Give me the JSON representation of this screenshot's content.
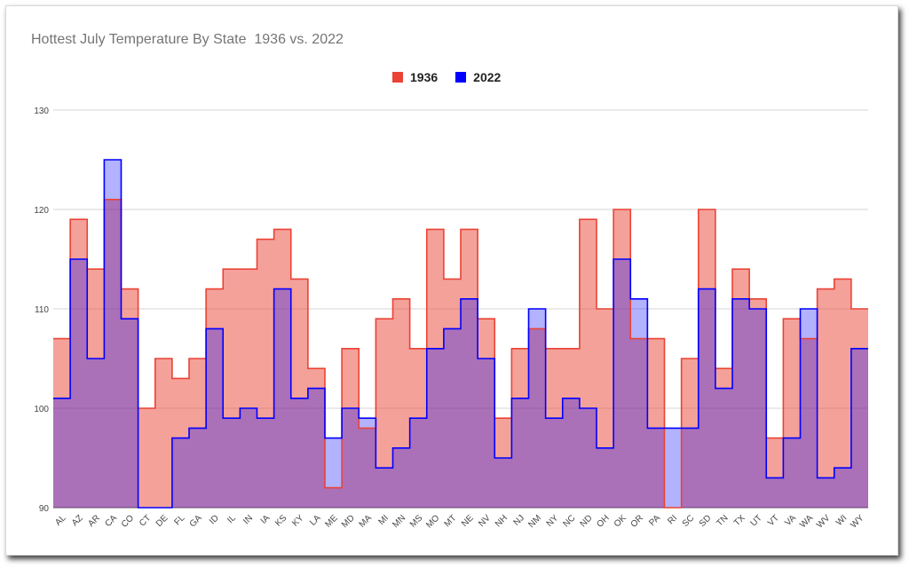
{
  "chart_data": {
    "type": "area",
    "title": "Hottest July Temperature By State  1936 vs. 2022",
    "categories": [
      "AL",
      "AZ",
      "AR",
      "CA",
      "CO",
      "CT",
      "DE",
      "FL",
      "GA",
      "ID",
      "IL",
      "IN",
      "IA",
      "KS",
      "KY",
      "LA",
      "ME",
      "MD",
      "MA",
      "MI",
      "MN",
      "MS",
      "MO",
      "MT",
      "NE",
      "NV",
      "NH",
      "NJ",
      "NM",
      "NY",
      "NC",
      "ND",
      "OH",
      "OK",
      "OR",
      "PA",
      "RI",
      "SC",
      "SD",
      "TN",
      "TX",
      "UT",
      "VT",
      "VA",
      "WA",
      "WV",
      "WI",
      "WY"
    ],
    "series": [
      {
        "name": "1936",
        "color": "#ea4335",
        "values": [
          107,
          119,
          114,
          121,
          112,
          100,
          105,
          103,
          105,
          112,
          114,
          114,
          117,
          118,
          113,
          104,
          92,
          106,
          98,
          109,
          111,
          106,
          118,
          113,
          118,
          109,
          99,
          106,
          108,
          106,
          106,
          119,
          110,
          120,
          107,
          107,
          90,
          105,
          120,
          104,
          114,
          111,
          97,
          109,
          107,
          112,
          113,
          110
        ]
      },
      {
        "name": "2022",
        "color": "#0000ff",
        "values": [
          101,
          115,
          105,
          125,
          109,
          90,
          88,
          97,
          98,
          108,
          99,
          100,
          99,
          112,
          101,
          102,
          97,
          100,
          99,
          94,
          96,
          99,
          106,
          108,
          111,
          105,
          95,
          101,
          110,
          99,
          101,
          100,
          96,
          115,
          111,
          98,
          98,
          98,
          112,
          102,
          111,
          110,
          93,
          97,
          110,
          93,
          94,
          106
        ]
      }
    ],
    "ylim": [
      90,
      130
    ],
    "yticks": [
      "90",
      "100",
      "110",
      "120",
      "130"
    ],
    "xlabel": "",
    "ylabel": "",
    "grid": true,
    "legend": "top-center"
  }
}
